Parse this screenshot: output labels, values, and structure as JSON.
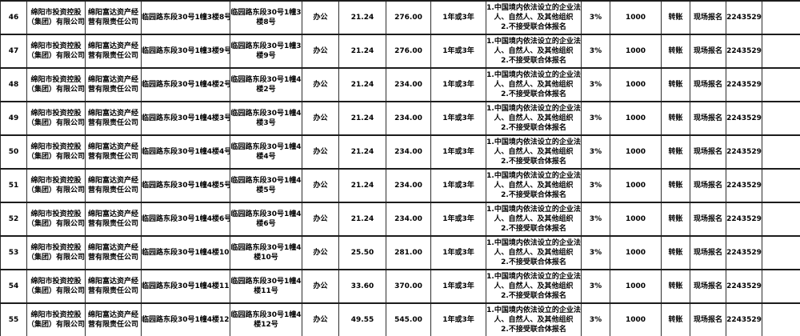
{
  "table": {
    "shared": {
      "lessor": "绵阳市投资控股（集团）有限公司",
      "operator": "绵阳富达资产经营有限责任公司",
      "usage": "办公",
      "lease_term": "1年或3年",
      "conditions": [
        "1.中国境内依法设立的企业法人、自然人、及其他组织",
        "2.不接受联合体报名"
      ],
      "deposit_rate": "3%",
      "deposit_amount": "1000",
      "payment_method": "转账",
      "registration": "现场报名",
      "phone": "2243529",
      "remark": ""
    },
    "rows": [
      {
        "seq": "46",
        "lessor": "绵阳市投资控股（集团）有限公司",
        "operator": "绵阳富达资产经营有限责任公司",
        "asset_name": "临园路东段30号1幢3楼8号",
        "location": "临园路东段30号1幢3楼8号",
        "usage": "办公",
        "area": "21.24",
        "annual_rent": "276.00",
        "lease_term": "1年或3年",
        "conditions": [
          "1.中国境内依法设立的企业法人、自然人、及其他组织",
          "2.不接受联合体报名"
        ],
        "deposit_rate": "3%",
        "deposit_amount": "1000",
        "payment_method": "转账",
        "registration": "现场报名",
        "phone": "2243529",
        "remark": ""
      },
      {
        "seq": "47",
        "lessor": "绵阳市投资控股（集团）有限公司",
        "operator": "绵阳富达资产经营有限责任公司",
        "asset_name": "临园路东段30号1幢3楼9号",
        "location": "临园路东段30号1幢3楼9号",
        "usage": "办公",
        "area": "21.24",
        "annual_rent": "276.00",
        "lease_term": "1年或3年",
        "conditions": [
          "1.中国境内依法设立的企业法人、自然人、及其他组织",
          "2.不接受联合体报名"
        ],
        "deposit_rate": "3%",
        "deposit_amount": "1000",
        "payment_method": "转账",
        "registration": "现场报名",
        "phone": "2243529",
        "remark": ""
      },
      {
        "seq": "48",
        "lessor": "绵阳市投资控股（集团）有限公司",
        "operator": "绵阳富达资产经营有限责任公司",
        "asset_name": "临园路东段30号1幢4楼2号",
        "location": "临园路东段30号1幢4楼2号",
        "usage": "办公",
        "area": "21.24",
        "annual_rent": "234.00",
        "lease_term": "1年或3年",
        "conditions": [
          "1.中国境内依法设立的企业法人、自然人、及其他组织",
          "2.不接受联合体报名"
        ],
        "deposit_rate": "3%",
        "deposit_amount": "1000",
        "payment_method": "转账",
        "registration": "现场报名",
        "phone": "2243529",
        "remark": ""
      },
      {
        "seq": "49",
        "lessor": "绵阳市投资控股（集团）有限公司",
        "operator": "绵阳富达资产经营有限责任公司",
        "asset_name": "临园路东段30号1幢4楼3号",
        "location": "临园路东段30号1幢4楼3号",
        "usage": "办公",
        "area": "21.24",
        "annual_rent": "234.00",
        "lease_term": "1年或3年",
        "conditions": [
          "1.中国境内依法设立的企业法人、自然人、及其他组织",
          "2.不接受联合体报名"
        ],
        "deposit_rate": "3%",
        "deposit_amount": "1000",
        "payment_method": "转账",
        "registration": "现场报名",
        "phone": "2243529",
        "remark": ""
      },
      {
        "seq": "50",
        "lessor": "绵阳市投资控股（集团）有限公司",
        "operator": "绵阳富达资产经营有限责任公司",
        "asset_name": "临园路东段30号1幢4楼4号",
        "location": "临园路东段30号1幢4楼4号",
        "usage": "办公",
        "area": "21.24",
        "annual_rent": "234.00",
        "lease_term": "1年或3年",
        "conditions": [
          "1.中国境内依法设立的企业法人、自然人、及其他组织",
          "2.不接受联合体报名"
        ],
        "deposit_rate": "3%",
        "deposit_amount": "1000",
        "payment_method": "转账",
        "registration": "现场报名",
        "phone": "2243529",
        "remark": ""
      },
      {
        "seq": "51",
        "lessor": "绵阳市投资控股（集团）有限公司",
        "operator": "绵阳富达资产经营有限责任公司",
        "asset_name": "临园路东段30号1幢4楼5号",
        "location": "临园路东段30号1幢4楼5号",
        "usage": "办公",
        "area": "21.24",
        "annual_rent": "234.00",
        "lease_term": "1年或3年",
        "conditions": [
          "1.中国境内依法设立的企业法人、自然人、及其他组织",
          "2.不接受联合体报名"
        ],
        "deposit_rate": "3%",
        "deposit_amount": "1000",
        "payment_method": "转账",
        "registration": "现场报名",
        "phone": "2243529",
        "remark": ""
      },
      {
        "seq": "52",
        "lessor": "绵阳市投资控股（集团）有限公司",
        "operator": "绵阳富达资产经营有限责任公司",
        "asset_name": "临园路东段30号1幢4楼6号",
        "location": "临园路东段30号1幢4楼6号",
        "usage": "办公",
        "area": "21.24",
        "annual_rent": "234.00",
        "lease_term": "1年或3年",
        "conditions": [
          "1.中国境内依法设立的企业法人、自然人、及其他组织",
          "2.不接受联合体报名"
        ],
        "deposit_rate": "3%",
        "deposit_amount": "1000",
        "payment_method": "转账",
        "registration": "现场报名",
        "phone": "2243529",
        "remark": ""
      },
      {
        "seq": "53",
        "lessor": "绵阳市投资控股（集团）有限公司",
        "operator": "绵阳富达资产经营有限责任公司",
        "asset_name": "临园路东段30号1幢4楼10号",
        "location": "临园路东段30号1幢4楼10号",
        "usage": "办公",
        "area": "25.50",
        "annual_rent": "281.00",
        "lease_term": "1年或3年",
        "conditions": [
          "1.中国境内依法设立的企业法人、自然人、及其他组织",
          "2.不接受联合体报名"
        ],
        "deposit_rate": "3%",
        "deposit_amount": "1000",
        "payment_method": "转账",
        "registration": "现场报名",
        "phone": "2243529",
        "remark": ""
      },
      {
        "seq": "54",
        "lessor": "绵阳市投资控股（集团）有限公司",
        "operator": "绵阳富达资产经营有限责任公司",
        "asset_name": "临园路东段30号1幢4楼11号",
        "location": "临园路东段30号1幢4楼11号",
        "usage": "办公",
        "area": "33.60",
        "annual_rent": "370.00",
        "lease_term": "1年或3年",
        "conditions": [
          "1.中国境内依法设立的企业法人、自然人、及其他组织",
          "2.不接受联合体报名"
        ],
        "deposit_rate": "3%",
        "deposit_amount": "1000",
        "payment_method": "转账",
        "registration": "现场报名",
        "phone": "2243529",
        "remark": ""
      },
      {
        "seq": "55",
        "lessor": "绵阳市投资控股（集团）有限公司",
        "operator": "绵阳富达资产经营有限责任公司",
        "asset_name": "临园路东段30号1幢4楼12号",
        "location": "临园路东段30号1幢4楼12号",
        "usage": "办公",
        "area": "49.55",
        "annual_rent": "545.00",
        "lease_term": "1年或3年",
        "conditions": [
          "1.中国境内依法设立的企业法人、自然人、及其他组织",
          "2.不接受联合体报名"
        ],
        "deposit_rate": "3%",
        "deposit_amount": "1000",
        "payment_method": "转账",
        "registration": "现场报名",
        "phone": "2243529",
        "remark": ""
      }
    ]
  }
}
